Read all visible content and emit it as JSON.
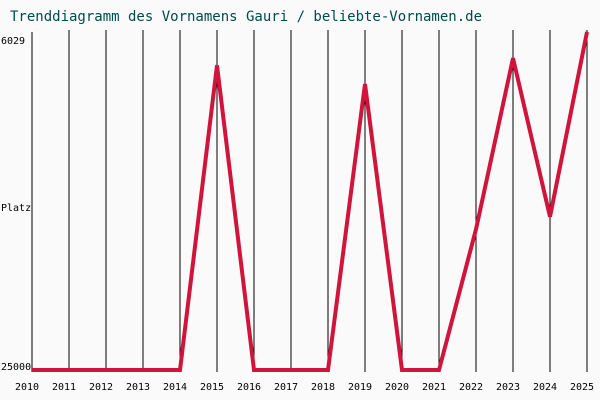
{
  "chart_data": {
    "type": "line",
    "title": "Trenddiagramm des Vornamens Gauri / beliebte-Vornamen.de",
    "y_label": "Platz",
    "x": [
      2010,
      2011,
      2012,
      2013,
      2014,
      2015,
      2016,
      2017,
      2018,
      2019,
      2020,
      2021,
      2022,
      2023,
      2024,
      2025
    ],
    "values": [
      25000,
      25000,
      25000,
      25000,
      25000,
      7900,
      25000,
      25000,
      25000,
      8950,
      25000,
      25000,
      17100,
      7500,
      16400,
      6029
    ],
    "color": "#d0143c",
    "xlim": [
      2010,
      2025
    ],
    "xticks": [
      2010,
      2011,
      2012,
      2013,
      2014,
      2015,
      2016,
      2017,
      2018,
      2019,
      2020,
      2021,
      2022,
      2023,
      2024,
      2025
    ],
    "ylim": [
      25000,
      6029
    ],
    "yticks": [
      6029,
      25000
    ],
    "grid": true
  }
}
